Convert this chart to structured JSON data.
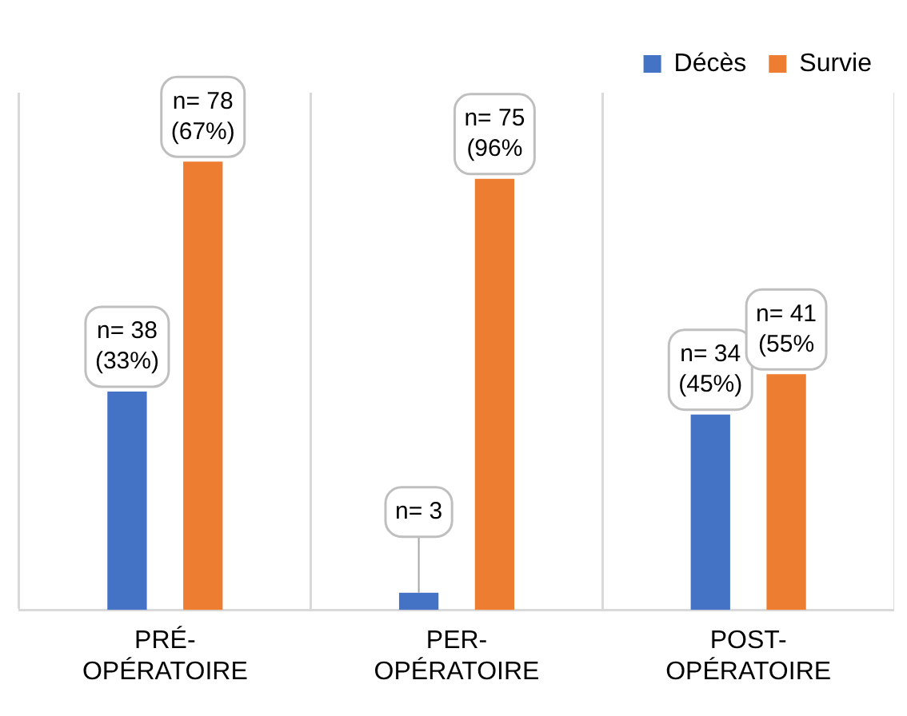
{
  "chart_data": {
    "type": "bar",
    "categories": [
      "PRÉ-OPÉRATOIRE",
      "PER-OPÉRATOIRE",
      "POST-OPÉRATOIRE"
    ],
    "series": [
      {
        "name": "Décès",
        "color": "#4472c4",
        "values": [
          38,
          3,
          34
        ],
        "value_labels": [
          "n= 38\n(33%)",
          "n= 3",
          "n= 34\n(45%)"
        ]
      },
      {
        "name": "Survie",
        "color": "#ed7d31",
        "values": [
          78,
          75,
          41
        ],
        "value_labels": [
          "n= 78\n(67%)",
          "n= 75\n(96%",
          "n= 41\n(55%"
        ]
      }
    ],
    "grid": "x",
    "legend": "top right"
  }
}
